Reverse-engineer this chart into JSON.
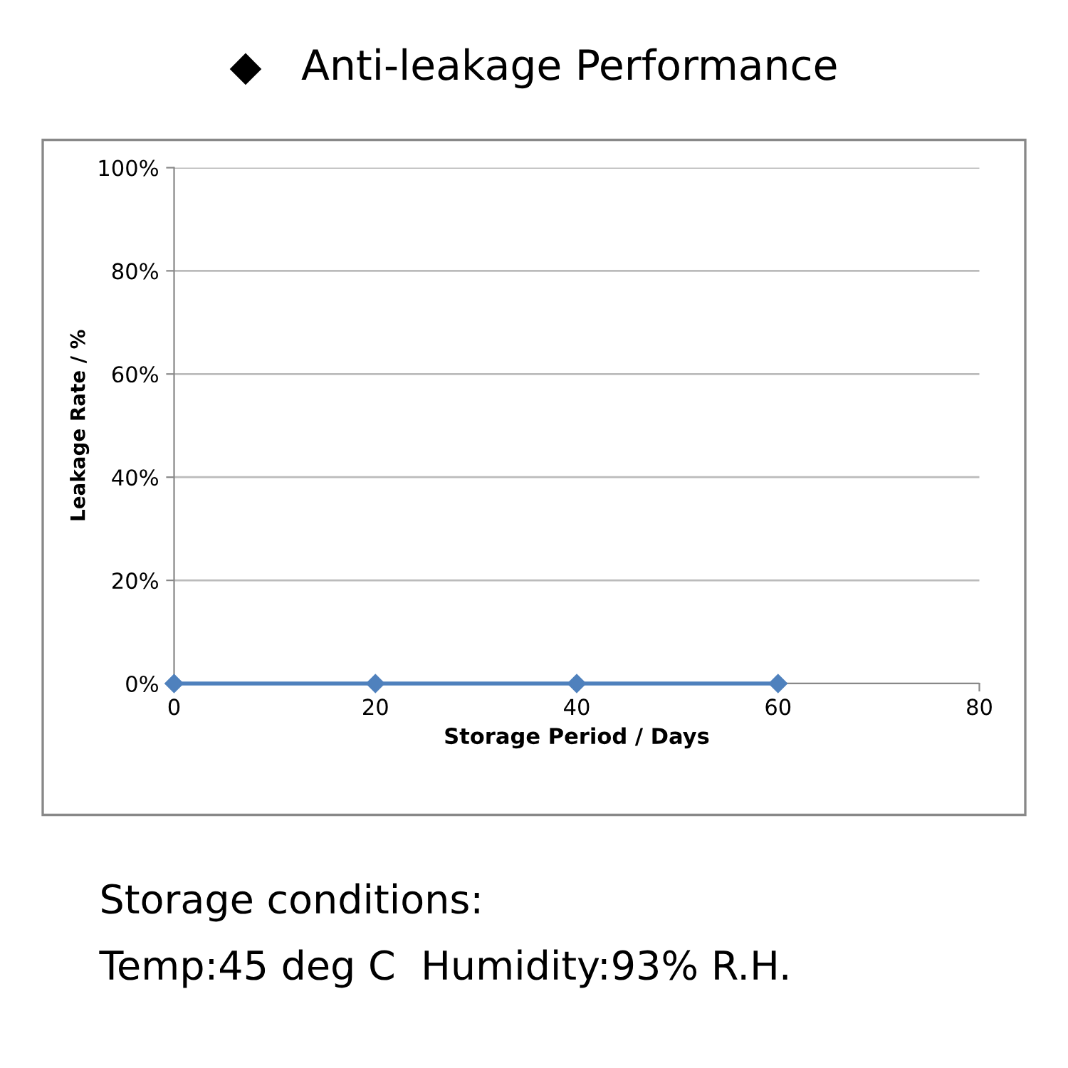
{
  "chart_data": {
    "type": "line",
    "title": "◆   Anti-leakage Performance",
    "xlabel": "Storage Period / Days",
    "ylabel": "Leakage Rate / %",
    "x": [
      0,
      20,
      40,
      60
    ],
    "series": [
      {
        "color": "#4f81bd",
        "values": [
          0,
          0,
          0,
          0
        ]
      }
    ],
    "xlim": [
      0,
      80
    ],
    "xticks": [
      0,
      20,
      40,
      60,
      80
    ],
    "ylim": [
      0,
      100
    ],
    "yticks": [
      {
        "value": 0,
        "label": "0%"
      },
      {
        "value": 20,
        "label": "20%"
      },
      {
        "value": 40,
        "label": "40%"
      },
      {
        "value": 60,
        "label": "60%"
      },
      {
        "value": 80,
        "label": "80%"
      },
      {
        "value": 100,
        "label": "100%"
      }
    ],
    "grid": "y",
    "marker": "diamond",
    "line_style": "solid",
    "annotations": [
      "Storage conditions:",
      "Temp:45 deg C  Humidity:93% R.H."
    ]
  }
}
